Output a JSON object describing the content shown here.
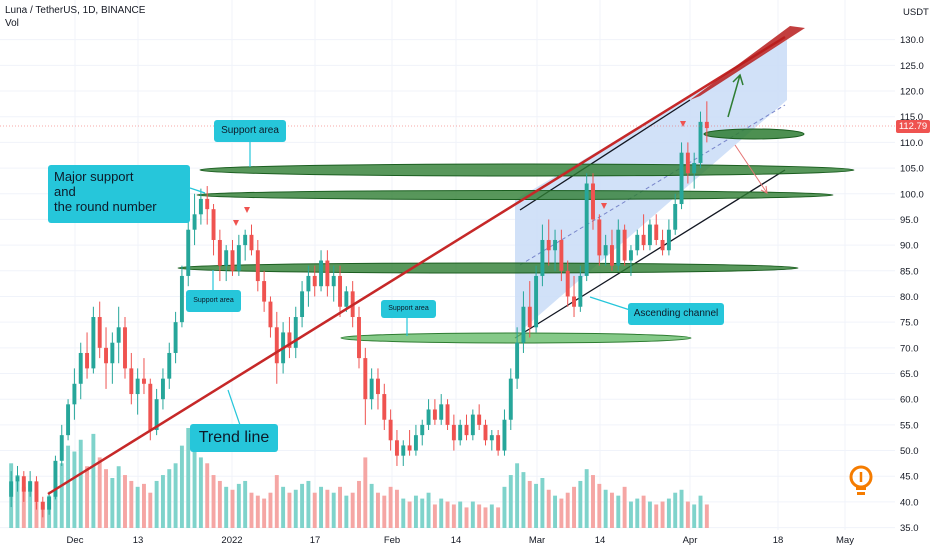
{
  "header": {
    "title": "Luna / TetherUS, 1D, BINANCE",
    "vol_label": "Vol"
  },
  "axis": {
    "currency": "USDT",
    "price_badge": "112.79"
  },
  "colors": {
    "up": "#26a69a",
    "down": "#ef5350",
    "up_volume": "#7fd3cb",
    "down_volume": "#f5a6a4",
    "trend_line": "#c62828",
    "support_ellipse": "#2e7d32",
    "channel_fill": "#c9dcf7",
    "callout": "#26c6da",
    "idea_icon": "#f57c00"
  },
  "annotations": {
    "support_top": "Support area",
    "major_support": "Major support\nand\nthe round number",
    "support_left": "Support area",
    "support_mid": "Support area",
    "ascending_channel": "Ascending channel",
    "trend_line": "Trend line"
  },
  "chart_data": {
    "type": "candlestick",
    "ylim": [
      32,
      135
    ],
    "y_ticks": [
      35,
      40,
      45,
      50,
      55,
      60,
      65,
      70,
      75,
      80,
      85,
      90,
      95,
      100,
      105,
      110,
      115,
      120,
      125,
      130
    ],
    "x_ticks": [
      "Dec",
      "13",
      "2022",
      "17",
      "Feb",
      "14",
      "Mar",
      "14",
      "Apr",
      "18",
      "May"
    ],
    "last_price": 112.79,
    "ohlc": [
      {
        "o": 41.0,
        "h": 46.0,
        "l": 39.0,
        "c": 44.0
      },
      {
        "o": 44.0,
        "h": 47.0,
        "l": 42.0,
        "c": 45.0
      },
      {
        "o": 45.0,
        "h": 46.0,
        "l": 40.0,
        "c": 42.0
      },
      {
        "o": 42.0,
        "h": 46.0,
        "l": 41.0,
        "c": 44.0
      },
      {
        "o": 44.0,
        "h": 45.0,
        "l": 38.5,
        "c": 40.0
      },
      {
        "o": 40.0,
        "h": 41.0,
        "l": 37.0,
        "c": 38.5
      },
      {
        "o": 38.5,
        "h": 42.0,
        "l": 37.5,
        "c": 41.0
      },
      {
        "o": 41.0,
        "h": 49.0,
        "l": 40.5,
        "c": 48.0
      },
      {
        "o": 48.0,
        "h": 55.0,
        "l": 47.0,
        "c": 53.0
      },
      {
        "o": 53.0,
        "h": 60.0,
        "l": 52.0,
        "c": 59.0
      },
      {
        "o": 59.0,
        "h": 66.0,
        "l": 56.0,
        "c": 63.0
      },
      {
        "o": 63.0,
        "h": 71.0,
        "l": 60.0,
        "c": 69.0
      },
      {
        "o": 69.0,
        "h": 73.0,
        "l": 64.0,
        "c": 66.0
      },
      {
        "o": 66.0,
        "h": 78.0,
        "l": 65.0,
        "c": 76.0
      },
      {
        "o": 76.0,
        "h": 79.0,
        "l": 68.0,
        "c": 70.0
      },
      {
        "o": 70.0,
        "h": 74.0,
        "l": 62.0,
        "c": 67.0
      },
      {
        "o": 67.0,
        "h": 73.0,
        "l": 63.0,
        "c": 71.0
      },
      {
        "o": 71.0,
        "h": 78.0,
        "l": 67.0,
        "c": 74.0
      },
      {
        "o": 74.0,
        "h": 76.0,
        "l": 64.0,
        "c": 66.0
      },
      {
        "o": 66.0,
        "h": 69.0,
        "l": 59.0,
        "c": 61.0
      },
      {
        "o": 61.0,
        "h": 66.0,
        "l": 57.0,
        "c": 64.0
      },
      {
        "o": 64.0,
        "h": 68.0,
        "l": 61.0,
        "c": 63.0
      },
      {
        "o": 63.0,
        "h": 64.0,
        "l": 52.0,
        "c": 54.0
      },
      {
        "o": 54.0,
        "h": 62.0,
        "l": 53.0,
        "c": 60.0
      },
      {
        "o": 60.0,
        "h": 66.0,
        "l": 58.0,
        "c": 64.0
      },
      {
        "o": 64.0,
        "h": 71.0,
        "l": 62.0,
        "c": 69.0
      },
      {
        "o": 69.0,
        "h": 77.0,
        "l": 67.0,
        "c": 75.0
      },
      {
        "o": 75.0,
        "h": 86.0,
        "l": 74.0,
        "c": 84.0
      },
      {
        "o": 84.0,
        "h": 95.0,
        "l": 82.0,
        "c": 93.0
      },
      {
        "o": 93.0,
        "h": 100.0,
        "l": 90.0,
        "c": 96.0
      },
      {
        "o": 96.0,
        "h": 101.0,
        "l": 94.0,
        "c": 99.0
      },
      {
        "o": 99.0,
        "h": 101.5,
        "l": 94.0,
        "c": 97.0
      },
      {
        "o": 97.0,
        "h": 98.0,
        "l": 88.0,
        "c": 91.0
      },
      {
        "o": 91.0,
        "h": 93.0,
        "l": 83.0,
        "c": 86.0
      },
      {
        "o": 86.0,
        "h": 90.0,
        "l": 83.0,
        "c": 89.0
      },
      {
        "o": 89.0,
        "h": 91.0,
        "l": 84.0,
        "c": 85.0
      },
      {
        "o": 85.0,
        "h": 92.0,
        "l": 84.0,
        "c": 90.0
      },
      {
        "o": 90.0,
        "h": 93.0,
        "l": 87.0,
        "c": 92.0
      },
      {
        "o": 92.0,
        "h": 94.0,
        "l": 88.0,
        "c": 89.0
      },
      {
        "o": 89.0,
        "h": 91.0,
        "l": 81.0,
        "c": 83.0
      },
      {
        "o": 83.0,
        "h": 85.0,
        "l": 77.0,
        "c": 79.0
      },
      {
        "o": 79.0,
        "h": 80.0,
        "l": 72.0,
        "c": 74.0
      },
      {
        "o": 74.0,
        "h": 77.0,
        "l": 63.0,
        "c": 67.0
      },
      {
        "o": 67.0,
        "h": 75.0,
        "l": 65.0,
        "c": 73.0
      },
      {
        "o": 73.0,
        "h": 76.0,
        "l": 68.0,
        "c": 70.0
      },
      {
        "o": 70.0,
        "h": 78.0,
        "l": 68.0,
        "c": 76.0
      },
      {
        "o": 76.0,
        "h": 83.0,
        "l": 74.0,
        "c": 81.0
      },
      {
        "o": 81.0,
        "h": 86.0,
        "l": 78.0,
        "c": 84.0
      },
      {
        "o": 84.0,
        "h": 86.0,
        "l": 80.0,
        "c": 82.0
      },
      {
        "o": 82.0,
        "h": 89.0,
        "l": 81.0,
        "c": 87.0
      },
      {
        "o": 87.0,
        "h": 89.0,
        "l": 80.0,
        "c": 82.0
      },
      {
        "o": 82.0,
        "h": 86.0,
        "l": 79.0,
        "c": 84.0
      },
      {
        "o": 84.0,
        "h": 86.0,
        "l": 76.0,
        "c": 78.0
      },
      {
        "o": 78.0,
        "h": 82.0,
        "l": 77.0,
        "c": 81.0
      },
      {
        "o": 81.0,
        "h": 83.0,
        "l": 74.0,
        "c": 76.0
      },
      {
        "o": 76.0,
        "h": 78.0,
        "l": 66.0,
        "c": 68.0
      },
      {
        "o": 68.0,
        "h": 70.0,
        "l": 55.0,
        "c": 60.0
      },
      {
        "o": 60.0,
        "h": 66.0,
        "l": 58.0,
        "c": 64.0
      },
      {
        "o": 64.0,
        "h": 66.0,
        "l": 58.0,
        "c": 61.0
      },
      {
        "o": 61.0,
        "h": 63.0,
        "l": 54.0,
        "c": 56.0
      },
      {
        "o": 56.0,
        "h": 58.0,
        "l": 50.0,
        "c": 52.0
      },
      {
        "o": 52.0,
        "h": 54.0,
        "l": 47.0,
        "c": 49.0
      },
      {
        "o": 49.0,
        "h": 52.0,
        "l": 47.0,
        "c": 51.0
      },
      {
        "o": 51.0,
        "h": 54.0,
        "l": 49.0,
        "c": 50.0
      },
      {
        "o": 50.0,
        "h": 55.0,
        "l": 49.0,
        "c": 53.0
      },
      {
        "o": 53.0,
        "h": 56.0,
        "l": 51.0,
        "c": 55.0
      },
      {
        "o": 55.0,
        "h": 60.0,
        "l": 54.0,
        "c": 58.0
      },
      {
        "o": 58.0,
        "h": 60.0,
        "l": 55.0,
        "c": 56.0
      },
      {
        "o": 56.0,
        "h": 61.0,
        "l": 55.0,
        "c": 59.0
      },
      {
        "o": 59.0,
        "h": 60.0,
        "l": 54.0,
        "c": 55.0
      },
      {
        "o": 55.0,
        "h": 57.0,
        "l": 50.0,
        "c": 52.0
      },
      {
        "o": 52.0,
        "h": 56.0,
        "l": 51.0,
        "c": 55.0
      },
      {
        "o": 55.0,
        "h": 57.0,
        "l": 52.0,
        "c": 53.0
      },
      {
        "o": 53.0,
        "h": 58.0,
        "l": 52.0,
        "c": 57.0
      },
      {
        "o": 57.0,
        "h": 59.0,
        "l": 54.0,
        "c": 55.0
      },
      {
        "o": 55.0,
        "h": 56.0,
        "l": 51.0,
        "c": 52.0
      },
      {
        "o": 52.0,
        "h": 54.0,
        "l": 50.0,
        "c": 53.0
      },
      {
        "o": 53.0,
        "h": 54.0,
        "l": 49.0,
        "c": 50.0
      },
      {
        "o": 50.0,
        "h": 58.0,
        "l": 49.0,
        "c": 56.0
      },
      {
        "o": 56.0,
        "h": 66.0,
        "l": 54.0,
        "c": 64.0
      },
      {
        "o": 64.0,
        "h": 74.0,
        "l": 62.0,
        "c": 71.0
      },
      {
        "o": 71.0,
        "h": 81.0,
        "l": 69.0,
        "c": 78.0
      },
      {
        "o": 78.0,
        "h": 83.0,
        "l": 72.0,
        "c": 74.0
      },
      {
        "o": 74.0,
        "h": 86.0,
        "l": 73.0,
        "c": 84.0
      },
      {
        "o": 84.0,
        "h": 94.0,
        "l": 82.0,
        "c": 91.0
      },
      {
        "o": 91.0,
        "h": 95.0,
        "l": 86.0,
        "c": 89.0
      },
      {
        "o": 89.0,
        "h": 93.0,
        "l": 85.0,
        "c": 91.0
      },
      {
        "o": 91.0,
        "h": 93.0,
        "l": 83.0,
        "c": 85.0
      },
      {
        "o": 85.0,
        "h": 87.0,
        "l": 78.0,
        "c": 80.0
      },
      {
        "o": 80.0,
        "h": 84.0,
        "l": 76.0,
        "c": 78.0
      },
      {
        "o": 78.0,
        "h": 86.0,
        "l": 77.0,
        "c": 84.0
      },
      {
        "o": 84.0,
        "h": 104.0,
        "l": 83.0,
        "c": 102.0
      },
      {
        "o": 102.0,
        "h": 104.0,
        "l": 93.0,
        "c": 95.0
      },
      {
        "o": 95.0,
        "h": 96.0,
        "l": 86.0,
        "c": 88.0
      },
      {
        "o": 88.0,
        "h": 92.0,
        "l": 86.0,
        "c": 90.0
      },
      {
        "o": 90.0,
        "h": 93.0,
        "l": 85.0,
        "c": 86.0
      },
      {
        "o": 86.0,
        "h": 95.0,
        "l": 85.0,
        "c": 93.0
      },
      {
        "o": 93.0,
        "h": 94.0,
        "l": 86.0,
        "c": 87.0
      },
      {
        "o": 87.0,
        "h": 90.0,
        "l": 84.0,
        "c": 89.0
      },
      {
        "o": 89.0,
        "h": 93.0,
        "l": 88.0,
        "c": 92.0
      },
      {
        "o": 92.0,
        "h": 96.0,
        "l": 89.0,
        "c": 90.0
      },
      {
        "o": 90.0,
        "h": 95.0,
        "l": 89.0,
        "c": 94.0
      },
      {
        "o": 94.0,
        "h": 96.0,
        "l": 90.0,
        "c": 91.0
      },
      {
        "o": 91.0,
        "h": 93.0,
        "l": 88.0,
        "c": 89.0
      },
      {
        "o": 89.0,
        "h": 95.0,
        "l": 88.0,
        "c": 93.0
      },
      {
        "o": 93.0,
        "h": 100.0,
        "l": 92.0,
        "c": 98.0
      },
      {
        "o": 98.0,
        "h": 110.0,
        "l": 97.0,
        "c": 108.0
      },
      {
        "o": 108.0,
        "h": 110.0,
        "l": 102.0,
        "c": 104.0
      },
      {
        "o": 104.0,
        "h": 108.0,
        "l": 101.0,
        "c": 106.0
      },
      {
        "o": 106.0,
        "h": 116.0,
        "l": 105.0,
        "c": 114.0
      },
      {
        "o": 114.0,
        "h": 118.0,
        "l": 110.0,
        "c": 112.79
      }
    ],
    "volume": [
      22,
      18,
      14,
      16,
      13,
      9,
      11,
      15,
      22,
      28,
      26,
      30,
      21,
      32,
      24,
      20,
      17,
      21,
      18,
      16,
      14,
      15,
      12,
      16,
      18,
      20,
      22,
      28,
      34,
      30,
      24,
      22,
      18,
      16,
      14,
      13,
      15,
      16,
      12,
      11,
      10,
      12,
      18,
      14,
      12,
      13,
      15,
      16,
      12,
      14,
      13,
      12,
      14,
      11,
      12,
      16,
      24,
      15,
      12,
      11,
      14,
      13,
      10,
      9,
      11,
      10,
      12,
      8,
      10,
      9,
      8,
      9,
      7,
      9,
      8,
      7,
      8,
      7,
      14,
      18,
      22,
      19,
      16,
      15,
      17,
      13,
      11,
      10,
      12,
      14,
      16,
      20,
      18,
      15,
      13,
      12,
      11,
      14,
      9,
      10,
      11,
      9,
      8,
      9,
      10,
      12,
      13,
      9,
      8,
      11,
      8
    ]
  }
}
